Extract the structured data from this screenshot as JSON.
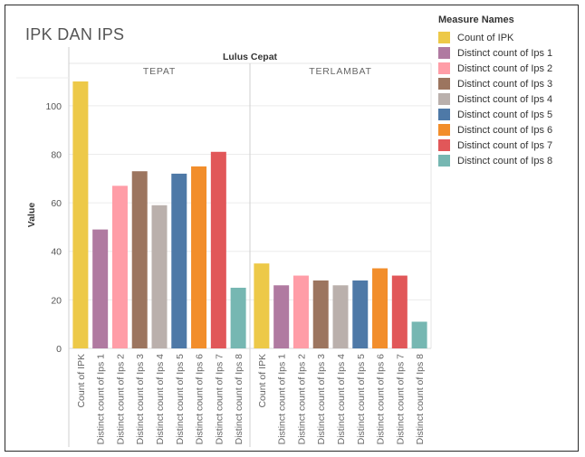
{
  "dashboard": {
    "title": "IPK DAN IPS"
  },
  "legend": {
    "title": "Measure Names",
    "items": [
      {
        "label": "Count of IPK",
        "color": "#EDC948"
      },
      {
        "label": "Distinct count of Ips 1",
        "color": "#B07AA1"
      },
      {
        "label": "Distinct count of Ips 2",
        "color": "#FF9DA7"
      },
      {
        "label": "Distinct count of Ips 3",
        "color": "#9C755F"
      },
      {
        "label": "Distinct count of Ips 4",
        "color": "#BAB0AC"
      },
      {
        "label": "Distinct count of Ips 5",
        "color": "#4E79A7"
      },
      {
        "label": "Distinct count of Ips 6",
        "color": "#F28E2B"
      },
      {
        "label": "Distinct count of Ips 7",
        "color": "#E15759"
      },
      {
        "label": "Distinct count of Ips 8",
        "color": "#76B7B2"
      }
    ]
  },
  "chart_data": {
    "type": "bar",
    "title": "",
    "column_header": "Lulus Cepat",
    "panels": [
      "TEPAT",
      "TERLAMBAT"
    ],
    "ylabel": "Value",
    "ylim": [
      0,
      110
    ],
    "yticks": [
      0,
      20,
      40,
      60,
      80,
      100
    ],
    "grid": true,
    "legend_position": "right",
    "categories": [
      "Count of IPK",
      "Distinct count of Ips 1",
      "Distinct count of Ips 2",
      "Distinct count of Ips 3",
      "Distinct count of Ips 4",
      "Distinct count of Ips 5",
      "Distinct count of Ips 6",
      "Distinct count of Ips 7",
      "Distinct count of Ips 8"
    ],
    "colors": [
      "#EDC948",
      "#B07AA1",
      "#FF9DA7",
      "#9C755F",
      "#BAB0AC",
      "#4E79A7",
      "#F28E2B",
      "#E15759",
      "#76B7B2"
    ],
    "series": [
      {
        "name": "TEPAT",
        "values": [
          110,
          49,
          67,
          73,
          59,
          72,
          75,
          81,
          25
        ]
      },
      {
        "name": "TERLAMBAT",
        "values": [
          35,
          26,
          30,
          28,
          26,
          28,
          33,
          30,
          11
        ]
      }
    ]
  }
}
